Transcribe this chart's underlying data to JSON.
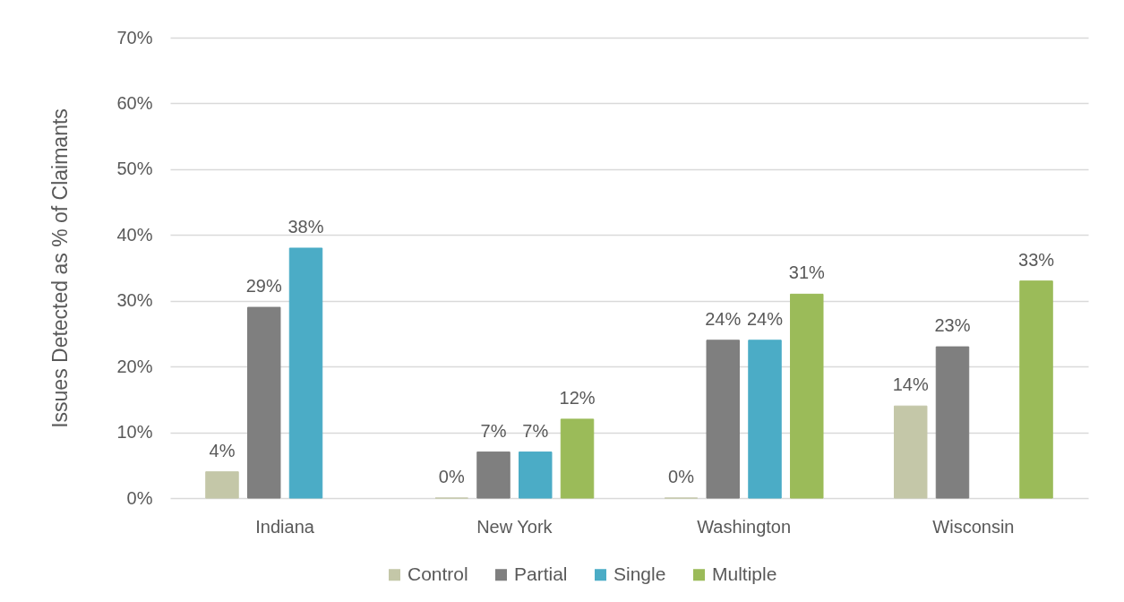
{
  "chart_data": {
    "type": "bar",
    "categories": [
      "Indiana",
      "New York",
      "Washington",
      "Wisconsin"
    ],
    "series": [
      {
        "name": "Control",
        "color": "#c4c7a8",
        "values": [
          4,
          0,
          0,
          14
        ],
        "value_labels": [
          "4%",
          "0%",
          "0%",
          "14%"
        ]
      },
      {
        "name": "Partial",
        "color": "#7f7f7f",
        "values": [
          29,
          7,
          24,
          23
        ],
        "value_labels": [
          "29%",
          "7%",
          "24%",
          "23%"
        ]
      },
      {
        "name": "Single",
        "color": "#4bacc6",
        "values": [
          38,
          7,
          24,
          null
        ],
        "value_labels": [
          "38%",
          "7%",
          "24%",
          null
        ]
      },
      {
        "name": "Multiple",
        "color": "#9bbb59",
        "values": [
          null,
          12,
          31,
          33
        ],
        "value_labels": [
          null,
          "12%",
          "31%",
          "33%"
        ]
      }
    ],
    "ylim": [
      0,
      70
    ],
    "yticks": [
      {
        "value": 0,
        "label": "0%"
      },
      {
        "value": 10,
        "label": "10%"
      },
      {
        "value": 20,
        "label": "20%"
      },
      {
        "value": 30,
        "label": "30%"
      },
      {
        "value": 40,
        "label": "40%"
      },
      {
        "value": 50,
        "label": "50%"
      },
      {
        "value": 60,
        "label": "60%"
      },
      {
        "value": 70,
        "label": "70%"
      }
    ],
    "ylabel": "Issues Detected as % of Claimants",
    "grid": "y",
    "legend": "bottom"
  }
}
